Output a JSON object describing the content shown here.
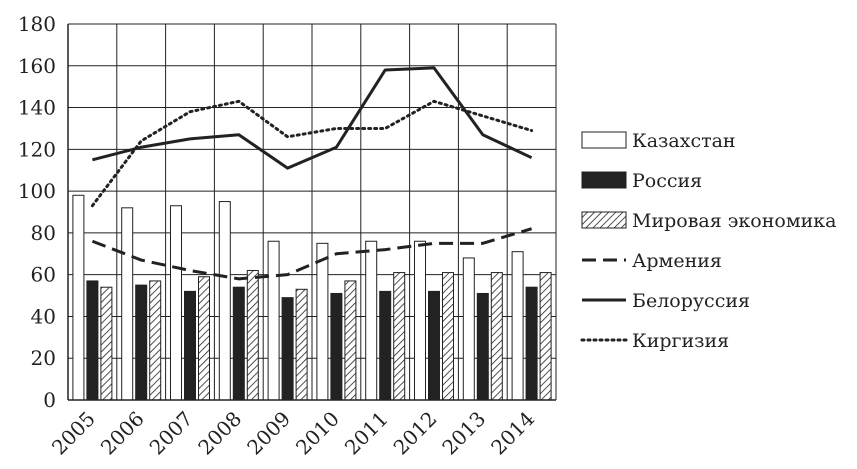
{
  "chart_data": {
    "type": "bar",
    "categories": [
      "2005",
      "2006",
      "2007",
      "2008",
      "2009",
      "2010",
      "2011",
      "2012",
      "2013",
      "2014"
    ],
    "ylim": [
      0,
      180
    ],
    "yticks": [
      0,
      20,
      40,
      60,
      80,
      100,
      120,
      140,
      160,
      180
    ],
    "grid": true,
    "legend_position": "right",
    "series": [
      {
        "name": "Казахстан",
        "kind": "bar",
        "style": "white",
        "values": [
          98,
          92,
          93,
          95,
          76,
          75,
          76,
          76,
          68,
          71
        ]
      },
      {
        "name": "Россия",
        "kind": "bar",
        "style": "black",
        "values": [
          57,
          55,
          52,
          54,
          49,
          51,
          52,
          52,
          51,
          54
        ]
      },
      {
        "name": "Мировая экономика",
        "kind": "bar",
        "style": "hatch",
        "values": [
          54,
          57,
          59,
          62,
          53,
          57,
          61,
          61,
          61,
          61
        ]
      },
      {
        "name": "Армения",
        "kind": "line",
        "style": "dashed",
        "values": [
          76,
          67,
          62,
          58,
          60,
          70,
          72,
          75,
          75,
          82
        ]
      },
      {
        "name": "Белоруссия",
        "kind": "line",
        "style": "solid",
        "values": [
          115,
          121,
          125,
          127,
          111,
          121,
          158,
          159,
          127,
          116
        ]
      },
      {
        "name": "Киргизия",
        "kind": "line",
        "style": "dotted",
        "values": [
          93,
          124,
          138,
          143,
          126,
          130,
          130,
          143,
          136,
          129
        ]
      }
    ],
    "colors": {
      "axis": "#222222",
      "bar_black": "#222222",
      "bar_white": "#ffffff",
      "grid": "#222222"
    }
  }
}
